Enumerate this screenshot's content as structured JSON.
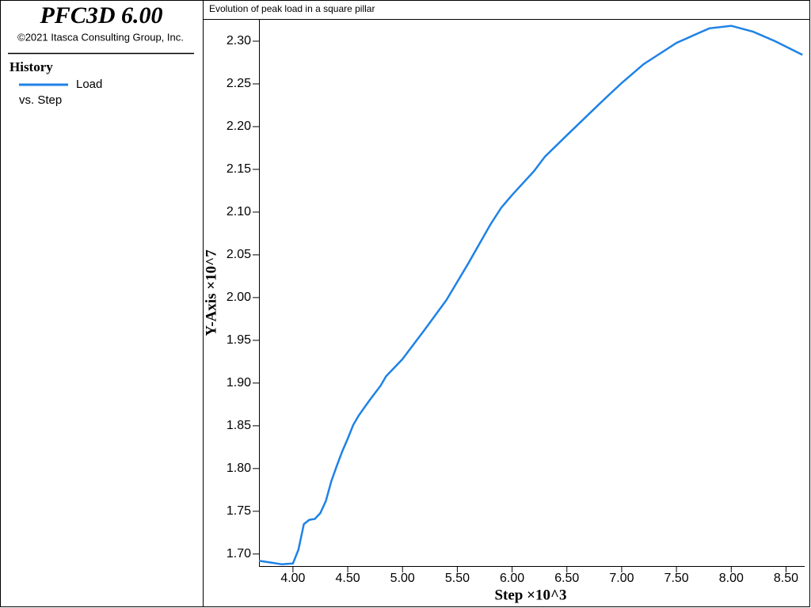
{
  "header": {
    "title": "PFC3D 6.00",
    "copyright": "©2021 Itasca Consulting Group, Inc."
  },
  "legend_heading": "History",
  "chart_data": {
    "type": "line",
    "title": "Evolution of peak load in a square pillar",
    "x_label": "Step ×10^3",
    "y_label": "Y-Axis ×10^7",
    "legend_subtitle": "vs. Step",
    "x": [
      3.69,
      3.8,
      3.9,
      4.0,
      4.05,
      4.1,
      4.15,
      4.2,
      4.25,
      4.3,
      4.35,
      4.4,
      4.45,
      4.5,
      4.55,
      4.6,
      4.7,
      4.8,
      4.85,
      5.0,
      5.2,
      5.4,
      5.6,
      5.8,
      5.9,
      6.0,
      6.2,
      6.3,
      6.5,
      6.8,
      7.0,
      7.2,
      7.5,
      7.8,
      8.0,
      8.2,
      8.4,
      8.65
    ],
    "series": [
      {
        "name": "Load",
        "color": "#1e82e6",
        "values": [
          1.692,
          1.69,
          1.688,
          1.689,
          1.705,
          1.735,
          1.74,
          1.741,
          1.748,
          1.762,
          1.785,
          1.803,
          1.82,
          1.835,
          1.851,
          1.862,
          1.88,
          1.897,
          1.908,
          1.928,
          1.962,
          1.997,
          2.04,
          2.085,
          2.105,
          2.12,
          2.148,
          2.165,
          2.19,
          2.227,
          2.251,
          2.273,
          2.298,
          2.315,
          2.318,
          2.311,
          2.3,
          2.284
        ]
      }
    ],
    "xlim": [
      3.69,
      8.67
    ],
    "ylim": [
      1.685,
      2.325
    ],
    "xticks": [
      {
        "value": 4,
        "label": "4.00"
      },
      {
        "value": 4.5,
        "label": "4.50"
      },
      {
        "value": 5,
        "label": "5.00"
      },
      {
        "value": 5.5,
        "label": "5.50"
      },
      {
        "value": 6,
        "label": "6.00"
      },
      {
        "value": 6.5,
        "label": "6.50"
      },
      {
        "value": 7,
        "label": "7.00"
      },
      {
        "value": 7.5,
        "label": "7.50"
      },
      {
        "value": 8,
        "label": "8.00"
      },
      {
        "value": 8.5,
        "label": "8.50"
      }
    ],
    "yticks": [
      {
        "value": 1.7,
        "label": "1.70"
      },
      {
        "value": 1.75,
        "label": "1.75"
      },
      {
        "value": 1.8,
        "label": "1.80"
      },
      {
        "value": 1.85,
        "label": "1.85"
      },
      {
        "value": 1.9,
        "label": "1.90"
      },
      {
        "value": 1.95,
        "label": "1.95"
      },
      {
        "value": 2,
        "label": "2.00"
      },
      {
        "value": 2.05,
        "label": "2.05"
      },
      {
        "value": 2.1,
        "label": "2.10"
      },
      {
        "value": 2.15,
        "label": "2.15"
      },
      {
        "value": 2.2,
        "label": "2.20"
      },
      {
        "value": 2.25,
        "label": "2.25"
      },
      {
        "value": 2.3,
        "label": "2.30"
      }
    ]
  }
}
